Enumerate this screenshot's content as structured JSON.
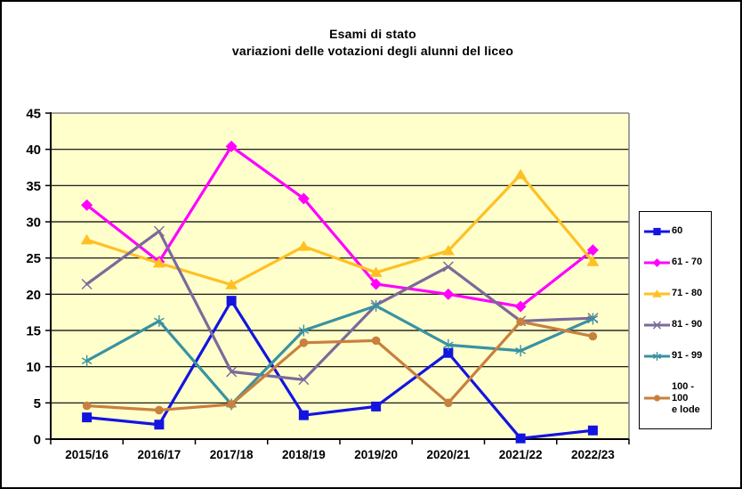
{
  "window": {
    "background": "#ffffff",
    "border_color": "#000000"
  },
  "chart_data": {
    "type": "line",
    "title_line1": "Esami di stato",
    "title_line2": "variazioni delle votazioni degli alunni del liceo",
    "categories": [
      "2015/16",
      "2016/17",
      "2017/18",
      "2018/19",
      "2019/20",
      "2020/21",
      "2021/22",
      "2022/23"
    ],
    "series": [
      {
        "name": "60",
        "legend_lines": [
          "60"
        ],
        "color": "#1414E0",
        "marker": "square",
        "values": [
          3.0,
          2.0,
          19.1,
          3.3,
          4.5,
          11.9,
          0.1,
          1.2
        ]
      },
      {
        "name": "61 - 70",
        "legend_lines": [
          "61 - 70"
        ],
        "color": "#FF00FF",
        "marker": "diamond",
        "values": [
          32.3,
          24.5,
          40.4,
          33.2,
          21.4,
          20.0,
          18.3,
          26.1
        ]
      },
      {
        "name": "71 - 80",
        "legend_lines": [
          "71 - 80"
        ],
        "color": "#FFC024",
        "marker": "triangle",
        "values": [
          27.5,
          24.3,
          21.3,
          26.6,
          23.0,
          26.0,
          36.5,
          24.5
        ]
      },
      {
        "name": "81 - 90",
        "legend_lines": [
          "81 - 90"
        ],
        "color": "#7A6A9B",
        "marker": "x",
        "values": [
          21.4,
          28.7,
          9.3,
          8.2,
          18.5,
          23.8,
          16.3,
          16.7
        ]
      },
      {
        "name": "91 - 99",
        "legend_lines": [
          "91 - 99"
        ],
        "color": "#3992A2",
        "marker": "asterisk",
        "values": [
          10.8,
          16.3,
          4.8,
          15.0,
          18.4,
          13.0,
          12.2,
          16.6
        ]
      },
      {
        "name": "100 - 100 e lode",
        "legend_lines": [
          "100 - 100",
          "e lode"
        ],
        "color": "#C8803F",
        "marker": "circle",
        "values": [
          4.6,
          4.0,
          4.8,
          13.3,
          13.6,
          5.0,
          16.2,
          14.2
        ]
      }
    ],
    "ylim": [
      0,
      45
    ],
    "ytick_step": 5,
    "plot_bg": "#FFFFCC",
    "grid": true,
    "gridline_color": "#000000",
    "axis_color": "#000000",
    "plot_border_color": "#848484",
    "legend_position": "right"
  }
}
